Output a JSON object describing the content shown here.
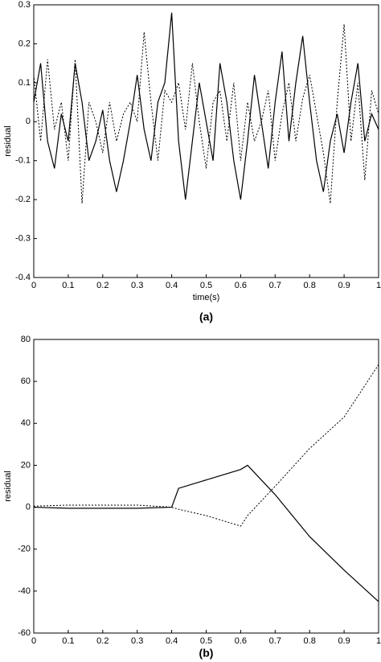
{
  "chart_data": [
    {
      "type": "line",
      "xlabel": "time(s)",
      "ylabel": "residual",
      "caption": "(a)",
      "x": [
        0,
        0.02,
        0.04,
        0.06,
        0.08,
        0.1,
        0.12,
        0.14,
        0.16,
        0.18,
        0.2,
        0.22,
        0.24,
        0.26,
        0.28,
        0.3,
        0.32,
        0.34,
        0.36,
        0.38,
        0.4,
        0.42,
        0.44,
        0.46,
        0.48,
        0.5,
        0.52,
        0.54,
        0.56,
        0.58,
        0.6,
        0.62,
        0.64,
        0.66,
        0.68,
        0.7,
        0.72,
        0.74,
        0.76,
        0.78,
        0.8,
        0.82,
        0.84,
        0.86,
        0.88,
        0.9,
        0.92,
        0.94,
        0.96,
        0.98,
        1
      ],
      "series": [
        {
          "color": "#000000",
          "line_style": "solid",
          "values": [
            0.05,
            0.15,
            -0.05,
            -0.12,
            0.02,
            -0.05,
            0.15,
            0.05,
            -0.1,
            -0.05,
            0.03,
            -0.1,
            -0.18,
            -0.1,
            0.0,
            0.12,
            -0.02,
            -0.1,
            0.05,
            0.1,
            0.28,
            -0.05,
            -0.2,
            -0.05,
            0.1,
            0.0,
            -0.1,
            0.15,
            0.05,
            -0.1,
            -0.2,
            -0.05,
            0.12,
            0.0,
            -0.12,
            0.05,
            0.18,
            -0.05,
            0.1,
            0.22,
            0.05,
            -0.1,
            -0.18,
            -0.05,
            0.02,
            -0.08,
            0.05,
            0.15,
            -0.05,
            0.02,
            -0.02
          ]
        },
        {
          "color": "#000000",
          "line_style": "dotted",
          "values": [
            0.12,
            -0.05,
            0.16,
            -0.02,
            0.05,
            -0.1,
            0.16,
            -0.21,
            0.05,
            0.0,
            -0.08,
            0.05,
            -0.05,
            0.02,
            0.05,
            0.0,
            0.23,
            0.05,
            -0.1,
            0.08,
            0.05,
            0.1,
            -0.02,
            0.15,
            0.0,
            -0.12,
            0.05,
            0.08,
            -0.05,
            0.1,
            -0.1,
            0.05,
            -0.05,
            0.0,
            0.08,
            -0.1,
            0.02,
            0.1,
            -0.05,
            0.06,
            0.12,
            0.02,
            -0.08,
            -0.21,
            0.05,
            0.25,
            -0.05,
            0.1,
            -0.15,
            0.08,
            0.02
          ]
        }
      ],
      "xlim": [
        0,
        1
      ],
      "xticks": [
        0,
        0.1,
        0.2,
        0.3,
        0.4,
        0.5,
        0.6,
        0.7,
        0.8,
        0.9,
        1
      ],
      "ylim": [
        -0.4,
        0.3
      ],
      "yticks": [
        -0.4,
        -0.3,
        -0.2,
        -0.1,
        0,
        0.1,
        0.2,
        0.3
      ]
    },
    {
      "type": "line",
      "ylabel": "residual",
      "caption": "(b)",
      "x": [
        0,
        0.1,
        0.2,
        0.3,
        0.4,
        0.42,
        0.5,
        0.6,
        0.62,
        0.7,
        0.8,
        0.9,
        1
      ],
      "series": [
        {
          "color": "#000000",
          "line_style": "solid",
          "values": [
            0,
            -0.5,
            -0.5,
            -0.5,
            0,
            9,
            13,
            18,
            20,
            6,
            -14,
            -30,
            -45
          ]
        },
        {
          "color": "#000000",
          "line_style": "dotted",
          "values": [
            0.5,
            1,
            1,
            1,
            0,
            -1,
            -4,
            -9,
            -4,
            10,
            28,
            43,
            68
          ]
        }
      ],
      "xlim": [
        0,
        1
      ],
      "xticks": [
        0,
        0.1,
        0.2,
        0.3,
        0.4,
        0.5,
        0.6,
        0.7,
        0.8,
        0.9,
        1
      ],
      "ylim": [
        -60,
        80
      ],
      "yticks": [
        -60,
        -40,
        -20,
        0,
        20,
        40,
        60,
        80
      ]
    }
  ]
}
